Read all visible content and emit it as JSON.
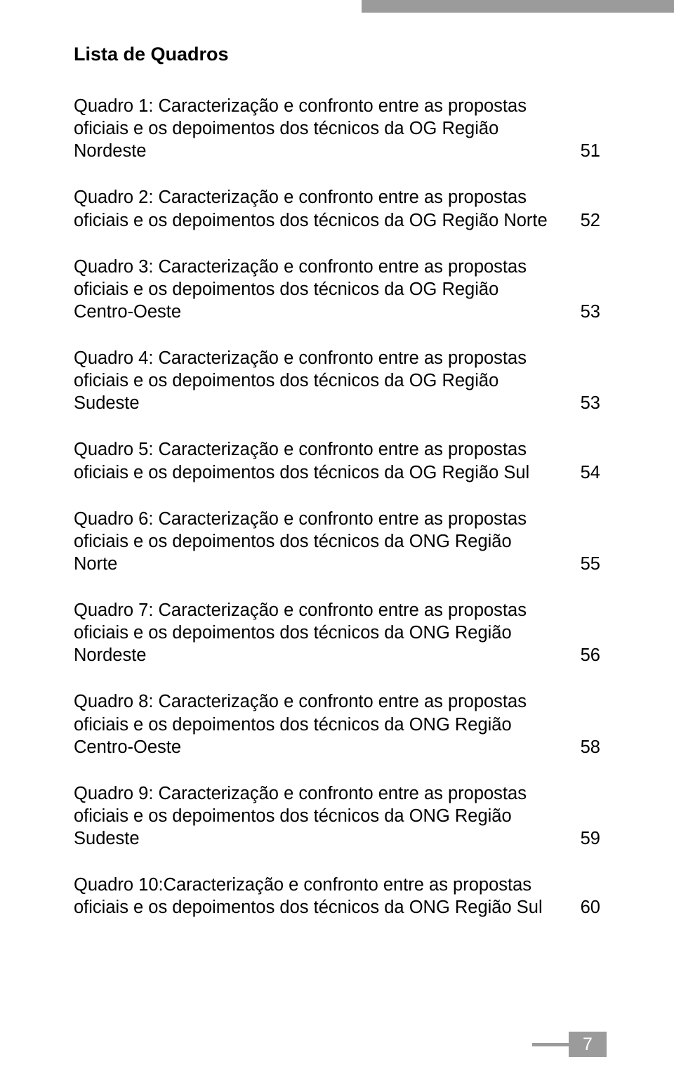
{
  "page": {
    "title": "Lista de Quadros",
    "page_number": "7",
    "colors": {
      "bar_gray": "#9b9b9b",
      "text": "#000000",
      "background": "#ffffff",
      "page_num_text": "#ffffff"
    },
    "typography": {
      "title_fontsize": 27,
      "title_weight": "bold",
      "body_fontsize": 25.5,
      "body_weight": "normal",
      "line_height": 1.26
    },
    "entries": [
      {
        "text": "Quadro 1: Caracterização e confronto entre as propostas oficiais e os depoimentos dos técnicos da OG Região Nordeste",
        "page": "51"
      },
      {
        "text": "Quadro 2: Caracterização e confronto entre as propostas oficiais e os depoimentos dos técnicos da OG Região Norte",
        "page": "52"
      },
      {
        "text": "Quadro 3: Caracterização e confronto entre as propostas oficiais e os depoimentos dos técnicos da OG Região Centro-Oeste",
        "page": "53"
      },
      {
        "text": "Quadro 4: Caracterização e confronto entre as propostas oficiais e os depoimentos dos técnicos da OG Região Sudeste",
        "page": "53"
      },
      {
        "text": "Quadro 5: Caracterização e confronto entre as propostas oficiais e os depoimentos dos técnicos da OG Região Sul",
        "page": "54"
      },
      {
        "text": "Quadro 6: Caracterização e confronto entre as propostas oficiais e os depoimentos dos técnicos da ONG Região Norte",
        "page": "55"
      },
      {
        "text": "Quadro 7: Caracterização e confronto entre as propostas oficiais e os depoimentos dos técnicos da ONG Região Nordeste",
        "page": "56"
      },
      {
        "text": "Quadro 8: Caracterização e confronto entre as propostas oficiais e os depoimentos dos técnicos da ONG Região Centro-Oeste",
        "page": "58"
      },
      {
        "text": "Quadro 9: Caracterização e confronto entre as propostas oficiais e os depoimentos dos técnicos da ONG Região Sudeste",
        "page": "59"
      },
      {
        "text": "Quadro 10:Caracterização e confronto entre as propostas oficiais e os depoimentos dos técnicos da ONG Região Sul",
        "page": "60"
      }
    ]
  }
}
